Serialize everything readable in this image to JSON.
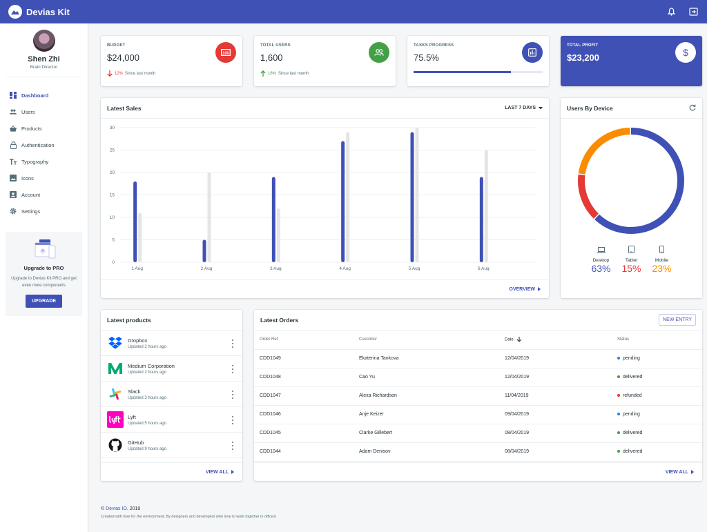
{
  "app": {
    "title": "Devias Kit"
  },
  "profile": {
    "name": "Shen Zhi",
    "role": "Brain Director"
  },
  "nav": [
    {
      "label": "Dashboard",
      "icon": "dashboard-icon",
      "active": true
    },
    {
      "label": "Users",
      "icon": "people-icon"
    },
    {
      "label": "Products",
      "icon": "shopping-basket-icon"
    },
    {
      "label": "Authentication",
      "icon": "lock-icon"
    },
    {
      "label": "Typography",
      "icon": "text-fields-icon"
    },
    {
      "label": "Icons",
      "icon": "image-icon"
    },
    {
      "label": "Account",
      "icon": "account-box-icon"
    },
    {
      "label": "Settings",
      "icon": "settings-icon"
    }
  ],
  "upgrade": {
    "title": "Upgrade to PRO",
    "desc": "Upgrade to Devias Kit PRO and get even more components",
    "button": "UPGRADE"
  },
  "stats": {
    "budget": {
      "label": "BUDGET",
      "value": "$24,000",
      "diff": "12%",
      "since": "Since last month",
      "color": "#e53935"
    },
    "users": {
      "label": "TOTAL USERS",
      "value": "1,600",
      "diff": "16%",
      "since": "Since last month",
      "color": "#43a047"
    },
    "tasks": {
      "label": "TASKS PROGRESS",
      "value": "75.5%",
      "progress": 75.5,
      "color": "#3f51b5"
    },
    "profit": {
      "label": "TOTAL PROFIT",
      "value": "$23,200"
    }
  },
  "sales": {
    "title": "Latest Sales",
    "range": "LAST 7 DAYS",
    "footer": "OVERVIEW"
  },
  "chart_data": {
    "type": "bar",
    "categories": [
      "1 Aug",
      "2 Aug",
      "3 Aug",
      "4 Aug",
      "5 Aug",
      "6 Aug"
    ],
    "series": [
      {
        "values": [
          18,
          5,
          19,
          27,
          29,
          19
        ],
        "color": "#3f51b5"
      },
      {
        "values": [
          11,
          20,
          12,
          29,
          30,
          25
        ],
        "color": "#e5e5e5"
      }
    ],
    "yticks": [
      0,
      5,
      10,
      15,
      20,
      25,
      30
    ],
    "ylim": [
      0,
      30
    ],
    "grid": true
  },
  "device": {
    "title": "Users By Device",
    "items": [
      {
        "label": "Desktop",
        "value": "63%",
        "pct": 63,
        "color": "#3f51b5",
        "icon": "laptop-icon"
      },
      {
        "label": "Tablet",
        "value": "15%",
        "pct": 15,
        "color": "#e53935",
        "icon": "tablet-icon"
      },
      {
        "label": "Mobile",
        "value": "23%",
        "pct": 23,
        "color": "#fb8c00",
        "icon": "phone-icon"
      }
    ]
  },
  "products": {
    "title": "Latest products",
    "footer": "VIEW ALL",
    "items": [
      {
        "name": "Dropbox",
        "time": "Updated 2 hours ago"
      },
      {
        "name": "Medium Corporation",
        "time": "Updated 2 hours ago"
      },
      {
        "name": "Slack",
        "time": "Updated 3 hours ago"
      },
      {
        "name": "Lyft",
        "time": "Updated 5 hours ago"
      },
      {
        "name": "GitHub",
        "time": "Updated 9 hours ago"
      }
    ]
  },
  "orders": {
    "title": "Latest Orders",
    "new_entry": "NEW ENTRY",
    "footer": "VIEW ALL",
    "headers": {
      "ref": "Order Ref",
      "customer": "Customer",
      "date": "Date",
      "status": "Status"
    },
    "rows": [
      {
        "ref": "CDD1049",
        "customer": "Ekaterina Tankova",
        "date": "12/04/2019",
        "status": "pending",
        "color": "#1e88e5"
      },
      {
        "ref": "CDD1048",
        "customer": "Cao Yu",
        "date": "12/04/2019",
        "status": "delivered",
        "color": "#43a047"
      },
      {
        "ref": "CDD1047",
        "customer": "Alexa Richardson",
        "date": "11/04/2019",
        "status": "refunded",
        "color": "#e53935"
      },
      {
        "ref": "CDD1046",
        "customer": "Anje Keizer",
        "date": "09/04/2019",
        "status": "pending",
        "color": "#1e88e5"
      },
      {
        "ref": "CDD1045",
        "customer": "Clarke Gillebert",
        "date": "08/04/2019",
        "status": "delivered",
        "color": "#43a047"
      },
      {
        "ref": "CDD1044",
        "customer": "Adam Denisov",
        "date": "08/04/2019",
        "status": "delivered",
        "color": "#43a047"
      }
    ]
  },
  "footer": {
    "copyright": "©",
    "brand": "Devias IO",
    "year": ". 2019",
    "sub": "Created with love for the environment. By designers and developers who love to work together in offices!"
  }
}
